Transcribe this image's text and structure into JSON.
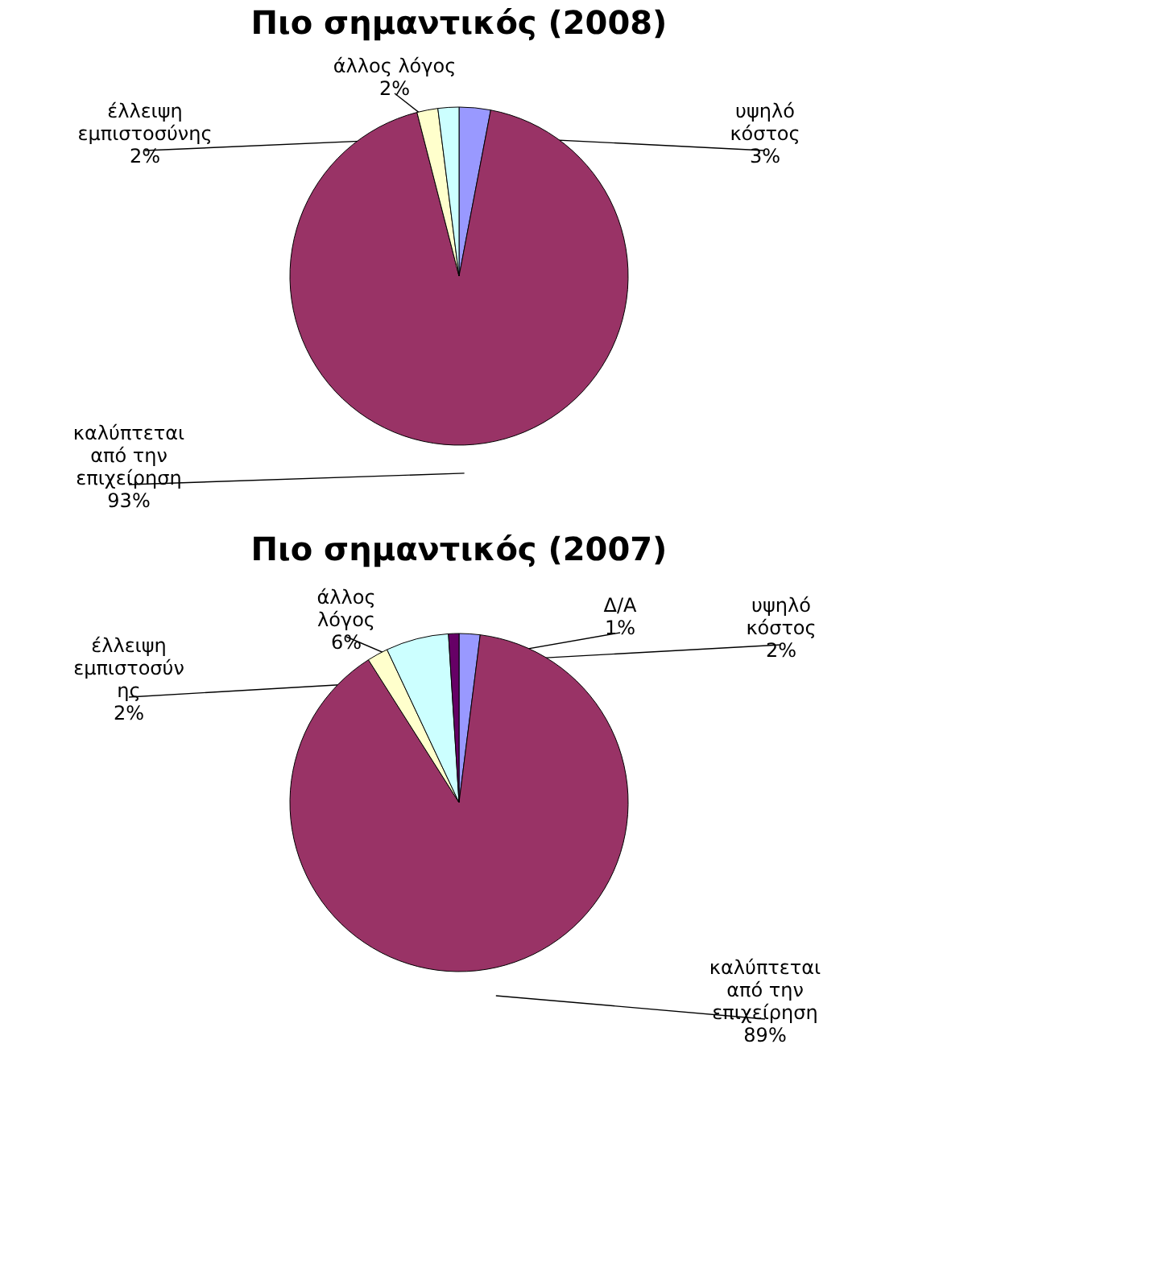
{
  "chart_data": [
    {
      "type": "pie",
      "title": "Πιο σημαντικός (2008)",
      "categories": [
        "υψηλό\nκόστος",
        "καλύπτεται\nαπό την\nεπιχείρηση",
        "έλλειψη\nεμπιστοσύνης",
        "άλλος λόγος"
      ],
      "values": [
        3,
        93,
        2,
        2
      ],
      "value_labels": [
        "3%",
        "93%",
        "2%",
        "2%"
      ],
      "colors": [
        "#9999ff",
        "#993366",
        "#ffffcc",
        "#ccffff"
      ],
      "legend": false
    },
    {
      "type": "pie",
      "title": "Πιο σημαντικός (2007)",
      "categories": [
        "υψηλό\nκόστος",
        "καλύπτεται\nαπό την\nεπιχείρηση",
        "έλλειψη\nεμπιστοσύν\nης",
        "άλλος\nλόγος",
        "Δ/Α"
      ],
      "values": [
        2,
        89,
        2,
        6,
        1
      ],
      "value_labels": [
        "2%",
        "89%",
        "2%",
        "6%",
        "1%"
      ],
      "colors": [
        "#9999ff",
        "#993366",
        "#ffffcc",
        "#ccffff",
        "#660066"
      ],
      "legend": false
    }
  ]
}
